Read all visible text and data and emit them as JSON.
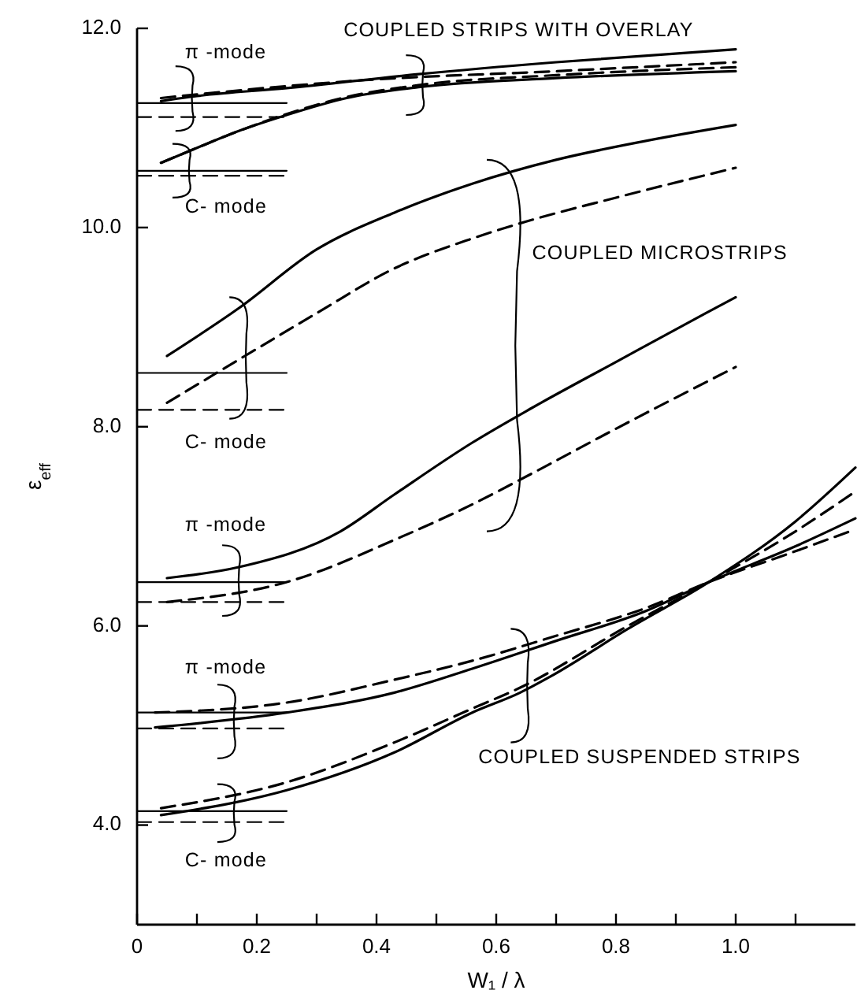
{
  "chart_data": {
    "type": "line",
    "xlabel": "W₁ / λ",
    "ylabel": "ε$_{eff}$",
    "xlim": [
      0,
      1.2
    ],
    "ylim": [
      3,
      12
    ],
    "xticks": [
      0,
      {
        "value": 0.1,
        "label": null
      },
      0.2,
      {
        "value": 0.3,
        "label": null
      },
      0.4,
      {
        "value": 0.5,
        "label": null
      },
      0.6,
      {
        "value": 0.7,
        "label": null
      },
      0.8,
      {
        "value": 0.9,
        "label": null
      },
      {
        "value": 1.0,
        "label": "1.0"
      },
      {
        "value": 1.1,
        "label": null
      }
    ],
    "yticks": [
      {
        "value": 4,
        "label": "4.0"
      },
      {
        "value": 6,
        "label": "6.0"
      },
      {
        "value": 8,
        "label": "8.0"
      },
      {
        "value": 10,
        "label": "10.0"
      },
      {
        "value": 12,
        "label": "12.0"
      }
    ],
    "series": [
      {
        "color": "#000000",
        "line_style": "solid",
        "x": [
          0.04,
          0.1,
          0.25,
          0.47,
          0.7,
          1.0
        ],
        "values": [
          11.27,
          11.32,
          11.4,
          11.54,
          11.66,
          11.79
        ]
      },
      {
        "color": "#000000",
        "line_style": "dashed",
        "x": [
          0.04,
          0.25,
          0.38,
          0.7,
          1.0
        ],
        "values": [
          11.3,
          11.42,
          11.48,
          11.57,
          11.66
        ]
      },
      {
        "color": "#000000",
        "line_style": "solid",
        "x": [
          0.04,
          0.1,
          0.17,
          0.25,
          0.35,
          0.47,
          0.7,
          1.0
        ],
        "values": [
          10.65,
          10.8,
          10.97,
          11.13,
          11.3,
          11.41,
          11.5,
          11.57
        ]
      },
      {
        "color": "#000000",
        "line_style": "dashed",
        "x": [
          0.04,
          0.1,
          0.17,
          0.25,
          0.35,
          0.47,
          0.7,
          1.0
        ],
        "values": [
          10.65,
          10.8,
          10.97,
          11.14,
          11.31,
          11.43,
          11.53,
          11.61
        ]
      },
      {
        "color": "#000000",
        "line_style": "solid",
        "x": [
          0,
          0.25
        ],
        "values": [
          11.25,
          11.25
        ]
      },
      {
        "color": "#000000",
        "line_style": "dashed",
        "x": [
          0,
          0.25
        ],
        "values": [
          11.11,
          11.11
        ]
      },
      {
        "color": "#000000",
        "line_style": "solid",
        "x": [
          0,
          0.25
        ],
        "values": [
          10.57,
          10.57
        ]
      },
      {
        "color": "#000000",
        "line_style": "dashed",
        "x": [
          0,
          0.25
        ],
        "values": [
          10.52,
          10.52
        ]
      },
      {
        "color": "#000000",
        "line_style": "solid",
        "x": [
          0.05,
          0.17,
          0.3,
          0.43,
          0.56,
          0.7,
          0.85,
          1.0
        ],
        "values": [
          8.71,
          9.19,
          9.78,
          10.15,
          10.44,
          10.68,
          10.87,
          11.03
        ]
      },
      {
        "color": "#000000",
        "line_style": "dashed",
        "x": [
          0.05,
          0.18,
          0.3,
          0.43,
          0.56,
          0.65,
          0.8,
          1.0
        ],
        "values": [
          8.24,
          8.71,
          9.14,
          9.59,
          9.89,
          10.06,
          10.3,
          10.6
        ]
      },
      {
        "color": "#000000",
        "line_style": "solid",
        "x": [
          0,
          0.25
        ],
        "values": [
          8.54,
          8.54
        ]
      },
      {
        "color": "#000000",
        "line_style": "dashed",
        "x": [
          0,
          0.25
        ],
        "values": [
          8.17,
          8.17
        ]
      },
      {
        "color": "#000000",
        "line_style": "solid",
        "x": [
          0.05,
          0.17,
          0.34,
          0.43,
          0.56,
          0.66,
          0.8,
          0.95,
          1.0
        ],
        "values": [
          6.48,
          6.59,
          6.95,
          7.32,
          7.84,
          8.19,
          8.65,
          9.14,
          9.3
        ]
      },
      {
        "color": "#000000",
        "line_style": "dashed",
        "x": [
          0.05,
          0.25,
          0.44,
          0.56,
          0.65,
          0.8,
          1.0
        ],
        "values": [
          6.24,
          6.44,
          6.89,
          7.22,
          7.5,
          7.98,
          8.6
        ]
      },
      {
        "color": "#000000",
        "line_style": "solid",
        "x": [
          0,
          0.25
        ],
        "values": [
          6.44,
          6.44
        ]
      },
      {
        "color": "#000000",
        "line_style": "dashed",
        "x": [
          0,
          0.25
        ],
        "values": [
          6.24,
          6.24
        ]
      },
      {
        "color": "#000000",
        "line_style": "solid",
        "x": [
          0.03,
          0.25,
          0.43,
          0.56,
          0.7,
          0.85,
          0.955,
          1.1,
          1.2
        ],
        "values": [
          4.98,
          5.13,
          5.33,
          5.57,
          5.85,
          6.15,
          6.44,
          6.8,
          7.08
        ]
      },
      {
        "color": "#000000",
        "line_style": "dashed",
        "x": [
          0.03,
          0.25,
          0.43,
          0.56,
          0.7,
          0.85,
          0.955,
          1.1,
          1.2
        ],
        "values": [
          5.13,
          5.23,
          5.46,
          5.65,
          5.9,
          6.18,
          6.44,
          6.75,
          6.97
        ]
      },
      {
        "color": "#000000",
        "line_style": "solid",
        "x": [
          0,
          0.25
        ],
        "values": [
          5.13,
          5.13
        ]
      },
      {
        "color": "#000000",
        "line_style": "dashed",
        "x": [
          0,
          0.25
        ],
        "values": [
          4.97,
          4.97
        ]
      },
      {
        "color": "#000000",
        "line_style": "solid",
        "x": [
          0.04,
          0.25,
          0.43,
          0.56,
          0.64,
          0.69,
          0.82,
          0.955,
          1.1,
          1.2
        ],
        "values": [
          4.1,
          4.35,
          4.73,
          5.13,
          5.33,
          5.49,
          5.97,
          6.44,
          7.05,
          7.59
        ]
      },
      {
        "color": "#000000",
        "line_style": "dashed",
        "x": [
          0.04,
          0.25,
          0.43,
          0.56,
          0.64,
          0.82,
          0.955,
          1.1,
          1.2
        ],
        "values": [
          4.17,
          4.43,
          4.83,
          5.17,
          5.38,
          6.0,
          6.44,
          6.95,
          7.35
        ]
      },
      {
        "color": "#000000",
        "line_style": "solid",
        "x": [
          0,
          0.25
        ],
        "values": [
          4.14,
          4.14
        ]
      },
      {
        "color": "#000000",
        "line_style": "dashed",
        "x": [
          0,
          0.25
        ],
        "values": [
          4.03,
          4.03
        ]
      }
    ],
    "annotations": [
      "COUPLED STRIPS WITH OVERLAY",
      "COUPLED MICROSTRIPS",
      "COUPLED SUSPENDED STRIPS",
      "π -mode",
      "C- mode",
      "C- mode",
      "π -mode",
      "π -mode",
      "C- mode"
    ]
  }
}
